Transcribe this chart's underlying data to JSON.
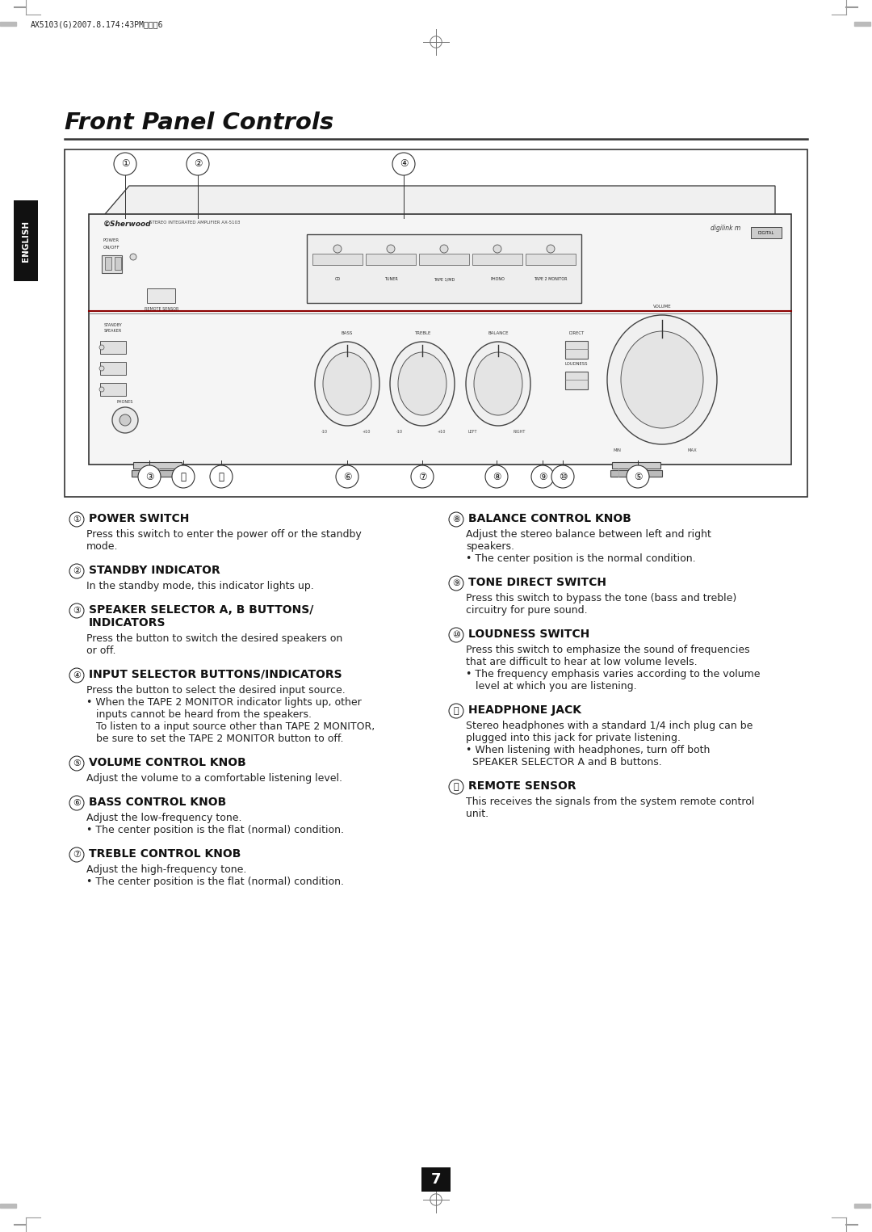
{
  "page_header": "AX5103(G)2007.8.174:43PM페이지6",
  "title": "Front Panel Controls",
  "bg_color": "#ffffff",
  "page_number": "7",
  "english_tab_text": "ENGLISH",
  "items_left": [
    {
      "num": "①",
      "heading": "POWER SWITCH",
      "heading2": null,
      "body": [
        "Press this switch to enter the power off or the standby",
        "mode."
      ]
    },
    {
      "num": "②",
      "heading": "STANDBY INDICATOR",
      "heading2": null,
      "body": [
        "In the standby mode, this indicator lights up."
      ]
    },
    {
      "num": "③",
      "heading": "SPEAKER SELECTOR A, B BUTTONS/",
      "heading2": "INDICATORS",
      "body": [
        "Press the button to switch the desired speakers on",
        "or off."
      ]
    },
    {
      "num": "④",
      "heading": "INPUT SELECTOR BUTTONS/INDICATORS",
      "heading2": null,
      "body": [
        "Press the button to select the desired input source.",
        "• When the TAPE 2 MONITOR indicator lights up, other",
        "   inputs cannot be heard from the speakers.",
        "   To listen to a input source other than TAPE 2 MONITOR,",
        "   be sure to set the TAPE 2 MONITOR button to off."
      ]
    },
    {
      "num": "⑤",
      "heading": "VOLUME CONTROL KNOB",
      "heading2": null,
      "body": [
        "Adjust the volume to a comfortable listening level."
      ]
    },
    {
      "num": "⑥",
      "heading": "BASS CONTROL KNOB",
      "heading2": null,
      "body": [
        "Adjust the low-frequency tone.",
        "• The center position is the flat (normal) condition."
      ]
    },
    {
      "num": "⑦",
      "heading": "TREBLE CONTROL KNOB",
      "heading2": null,
      "body": [
        "Adjust the high-frequency tone.",
        "• The center position is the flat (normal) condition."
      ]
    }
  ],
  "items_right": [
    {
      "num": "⑧",
      "heading": "BALANCE CONTROL KNOB",
      "heading2": null,
      "body": [
        "Adjust the stereo balance between left and right",
        "speakers.",
        "• The center position is the normal condition."
      ]
    },
    {
      "num": "⑨",
      "heading": "TONE DIRECT SWITCH",
      "heading2": null,
      "body": [
        "Press this switch to bypass the tone (bass and treble)",
        "circuitry for pure sound."
      ]
    },
    {
      "num": "⑩",
      "heading": "LOUDNESS SWITCH",
      "heading2": null,
      "body": [
        "Press this switch to emphasize the sound of frequencies",
        "that are difficult to hear at low volume levels.",
        "• The frequency emphasis varies according to the volume",
        "   level at which you are listening."
      ]
    },
    {
      "num": "⑪",
      "heading": "HEADPHONE JACK",
      "heading2": null,
      "body": [
        "Stereo headphones with a standard 1/4 inch plug can be",
        "plugged into this jack for private listening.",
        "• When listening with headphones, turn off both",
        "  SPEAKER SELECTOR A and B buttons."
      ]
    },
    {
      "num": "⑫",
      "heading": "REMOTE SENSOR",
      "heading2": null,
      "body": [
        "This receives the signals from the system remote control",
        "unit."
      ]
    }
  ],
  "below_labels": [
    [
      "③",
      185
    ],
    [
      "⑪",
      227
    ],
    [
      "⑫",
      274
    ],
    [
      "⑥",
      430
    ],
    [
      "⑦",
      523
    ],
    [
      "⑧",
      615
    ],
    [
      "⑨",
      672
    ],
    [
      "⑩",
      697
    ],
    [
      "⑤",
      790
    ]
  ],
  "above_labels": [
    [
      "①",
      155
    ],
    [
      "②",
      245
    ],
    [
      "④",
      500
    ]
  ]
}
